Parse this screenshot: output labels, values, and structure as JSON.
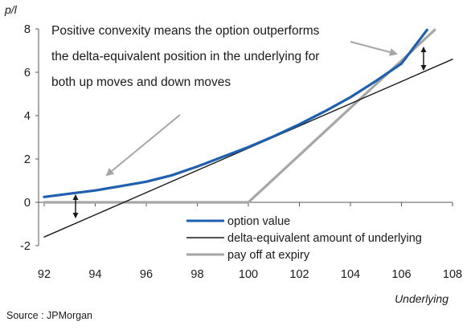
{
  "chart_data": {
    "type": "line",
    "ylabel": "p/l",
    "xlabel": "Underlying",
    "xlim": [
      92,
      108
    ],
    "ylim": [
      -2,
      8
    ],
    "x_ticks": [
      92,
      94,
      96,
      98,
      100,
      102,
      104,
      106,
      108
    ],
    "y_ticks": [
      -2,
      0,
      2,
      4,
      6,
      8
    ],
    "grid": false,
    "legend_position": "bottom-right",
    "series": [
      {
        "name": "option value",
        "color": "#1f5fb0",
        "x": [
          92,
          93,
          94,
          95,
          96,
          97,
          98,
          99,
          100,
          101,
          102,
          103,
          104,
          105,
          106,
          107
        ],
        "y": [
          0.25,
          0.4,
          0.55,
          0.75,
          0.95,
          1.25,
          1.65,
          2.1,
          2.55,
          3.05,
          3.6,
          4.2,
          4.85,
          5.6,
          6.4,
          7.95
        ]
      },
      {
        "name": "delta-equivalent amount of underlying",
        "color": "#1a1a1a",
        "x": [
          92,
          108
        ],
        "y": [
          -1.6,
          6.6
        ]
      },
      {
        "name": "pay off at expiry",
        "color": "#a6a6a6",
        "x": [
          92,
          100,
          107.3
        ],
        "y": [
          0,
          0,
          7.95
        ]
      }
    ],
    "annotation": {
      "lines": [
        "Positive convexity means the option outperforms",
        "the delta-equivalent position in the underlying for",
        "both up moves and down moves"
      ]
    }
  },
  "source": "Source : JPMorgan"
}
